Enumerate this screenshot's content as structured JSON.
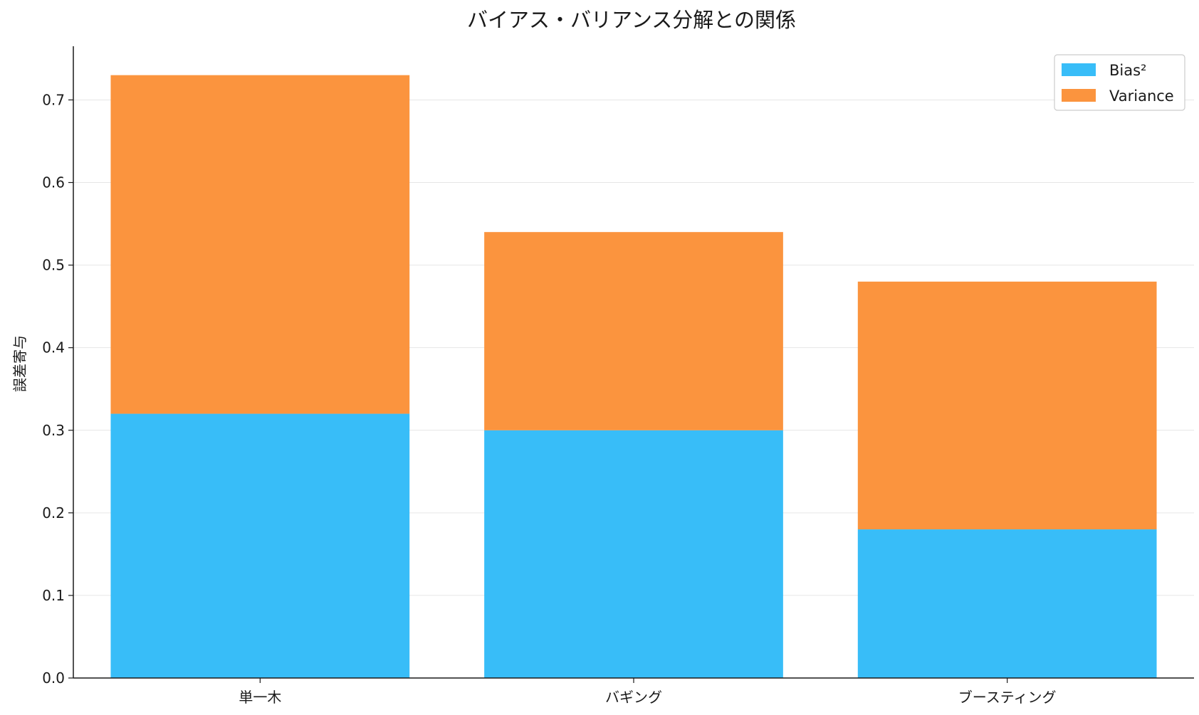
{
  "chart_data": {
    "type": "bar",
    "stacked": true,
    "title": "バイアス・バリアンス分解との関係",
    "xlabel": "",
    "ylabel": "誤差寄与",
    "categories": [
      "単一木",
      "バギング",
      "ブースティング"
    ],
    "series": [
      {
        "name": "Bias²",
        "values": [
          0.32,
          0.3,
          0.18
        ],
        "color": "#38bdf8"
      },
      {
        "name": "Variance",
        "values": [
          0.41,
          0.24,
          0.3
        ],
        "color": "#fb943e"
      }
    ],
    "ylim": [
      0,
      0.765
    ],
    "yticks": [
      "0.0",
      "0.1",
      "0.2",
      "0.3",
      "0.4",
      "0.5",
      "0.6",
      "0.7"
    ],
    "grid": "y",
    "legend": "top-right"
  }
}
